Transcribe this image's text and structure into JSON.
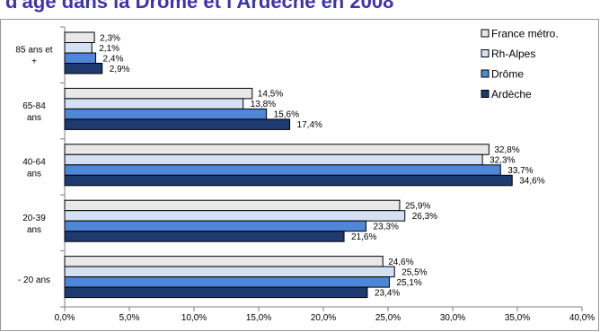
{
  "title": "d'âge dans la Drôme et l'Ardèche en 2008",
  "chart_data": {
    "type": "bar",
    "orientation": "horizontal",
    "title": "d'âge dans la Drôme et l'Ardèche en 2008",
    "categories": [
      [
        "85 ans et",
        "+"
      ],
      [
        "65-84",
        "ans"
      ],
      [
        "40-64",
        "ans"
      ],
      [
        "20-39",
        "ans"
      ],
      [
        "- 20 ans"
      ]
    ],
    "series": [
      {
        "name": "France métro.",
        "color": "#e8e8e8",
        "values": [
          2.3,
          14.5,
          32.8,
          25.9,
          24.6
        ],
        "labels": [
          "2,3%",
          "14,5%",
          "32,8%",
          "25,9%",
          "24,6%"
        ]
      },
      {
        "name": "Rh-Alpes",
        "color": "#d4e0f4",
        "values": [
          2.1,
          13.8,
          32.3,
          26.3,
          25.5
        ],
        "labels": [
          "2,1%",
          "13,8%",
          "32,3%",
          "26,3%",
          "25,5%"
        ]
      },
      {
        "name": "Drôme",
        "color": "#4f86d8",
        "values": [
          2.4,
          15.6,
          33.7,
          23.3,
          25.1
        ],
        "labels": [
          "2,4%",
          "15,6%",
          "33,7%",
          "23,3%",
          "25,1%"
        ]
      },
      {
        "name": "Ardèche",
        "color": "#1f3a6e",
        "values": [
          2.9,
          17.4,
          34.6,
          21.6,
          23.4
        ],
        "labels": [
          "2,9%",
          "17,4%",
          "34,6%",
          "21,6%",
          "23,4%"
        ]
      }
    ],
    "xlim": [
      0,
      40
    ],
    "xticks": [
      "0,0%",
      "5,0%",
      "10,0%",
      "15,0%",
      "20,0%",
      "25,0%",
      "30,0%",
      "35,0%",
      "40,0%"
    ],
    "grid": false,
    "legend_position": "top-right"
  }
}
